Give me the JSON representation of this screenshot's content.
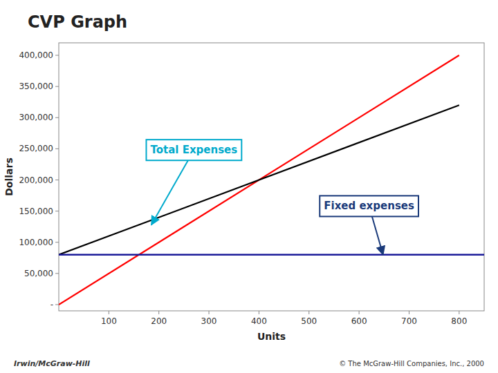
{
  "chart_data": {
    "type": "line",
    "title": "CVP Graph",
    "x_label": "Units",
    "y_label": "Dollars",
    "xlim": [
      0,
      850
    ],
    "ylim": [
      -10000,
      420000
    ],
    "xticks": [
      100,
      200,
      300,
      400,
      500,
      600,
      700,
      800
    ],
    "yticks": [
      {
        "value": 0,
        "label": "-"
      },
      {
        "value": 50000,
        "label": "50,000"
      },
      {
        "value": 100000,
        "label": "100,000"
      },
      {
        "value": 150000,
        "label": "150,000"
      },
      {
        "value": 200000,
        "label": "200,000"
      },
      {
        "value": 250000,
        "label": "250,000"
      },
      {
        "value": 300000,
        "label": "300,000"
      },
      {
        "value": 350000,
        "label": "350,000"
      },
      {
        "value": 400000,
        "label": "400,000"
      }
    ],
    "grid": false,
    "series": [
      {
        "type": "line",
        "color": "#ff0000",
        "x": [
          0,
          800
        ],
        "values": [
          0,
          400000
        ]
      },
      {
        "type": "line",
        "color": "#000000",
        "x": [
          0,
          800
        ],
        "values": [
          80000,
          320000
        ]
      },
      {
        "type": "hline",
        "color": "#1a1a99",
        "values": [
          80000
        ]
      }
    ],
    "annotations": [
      {
        "text": "Total Expenses",
        "color": "#00aacc",
        "x": 185,
        "y": 128000,
        "text_x": 270,
        "text_y": 248000
      },
      {
        "text": "Fixed expenses",
        "color": "#1a3a7a",
        "x": 648,
        "y": 80000,
        "text_x": 620,
        "text_y": 158000
      }
    ],
    "footer": [
      "Irwin/McGraw-Hill",
      "© The McGraw-Hill Companies, Inc., 2000"
    ]
  }
}
